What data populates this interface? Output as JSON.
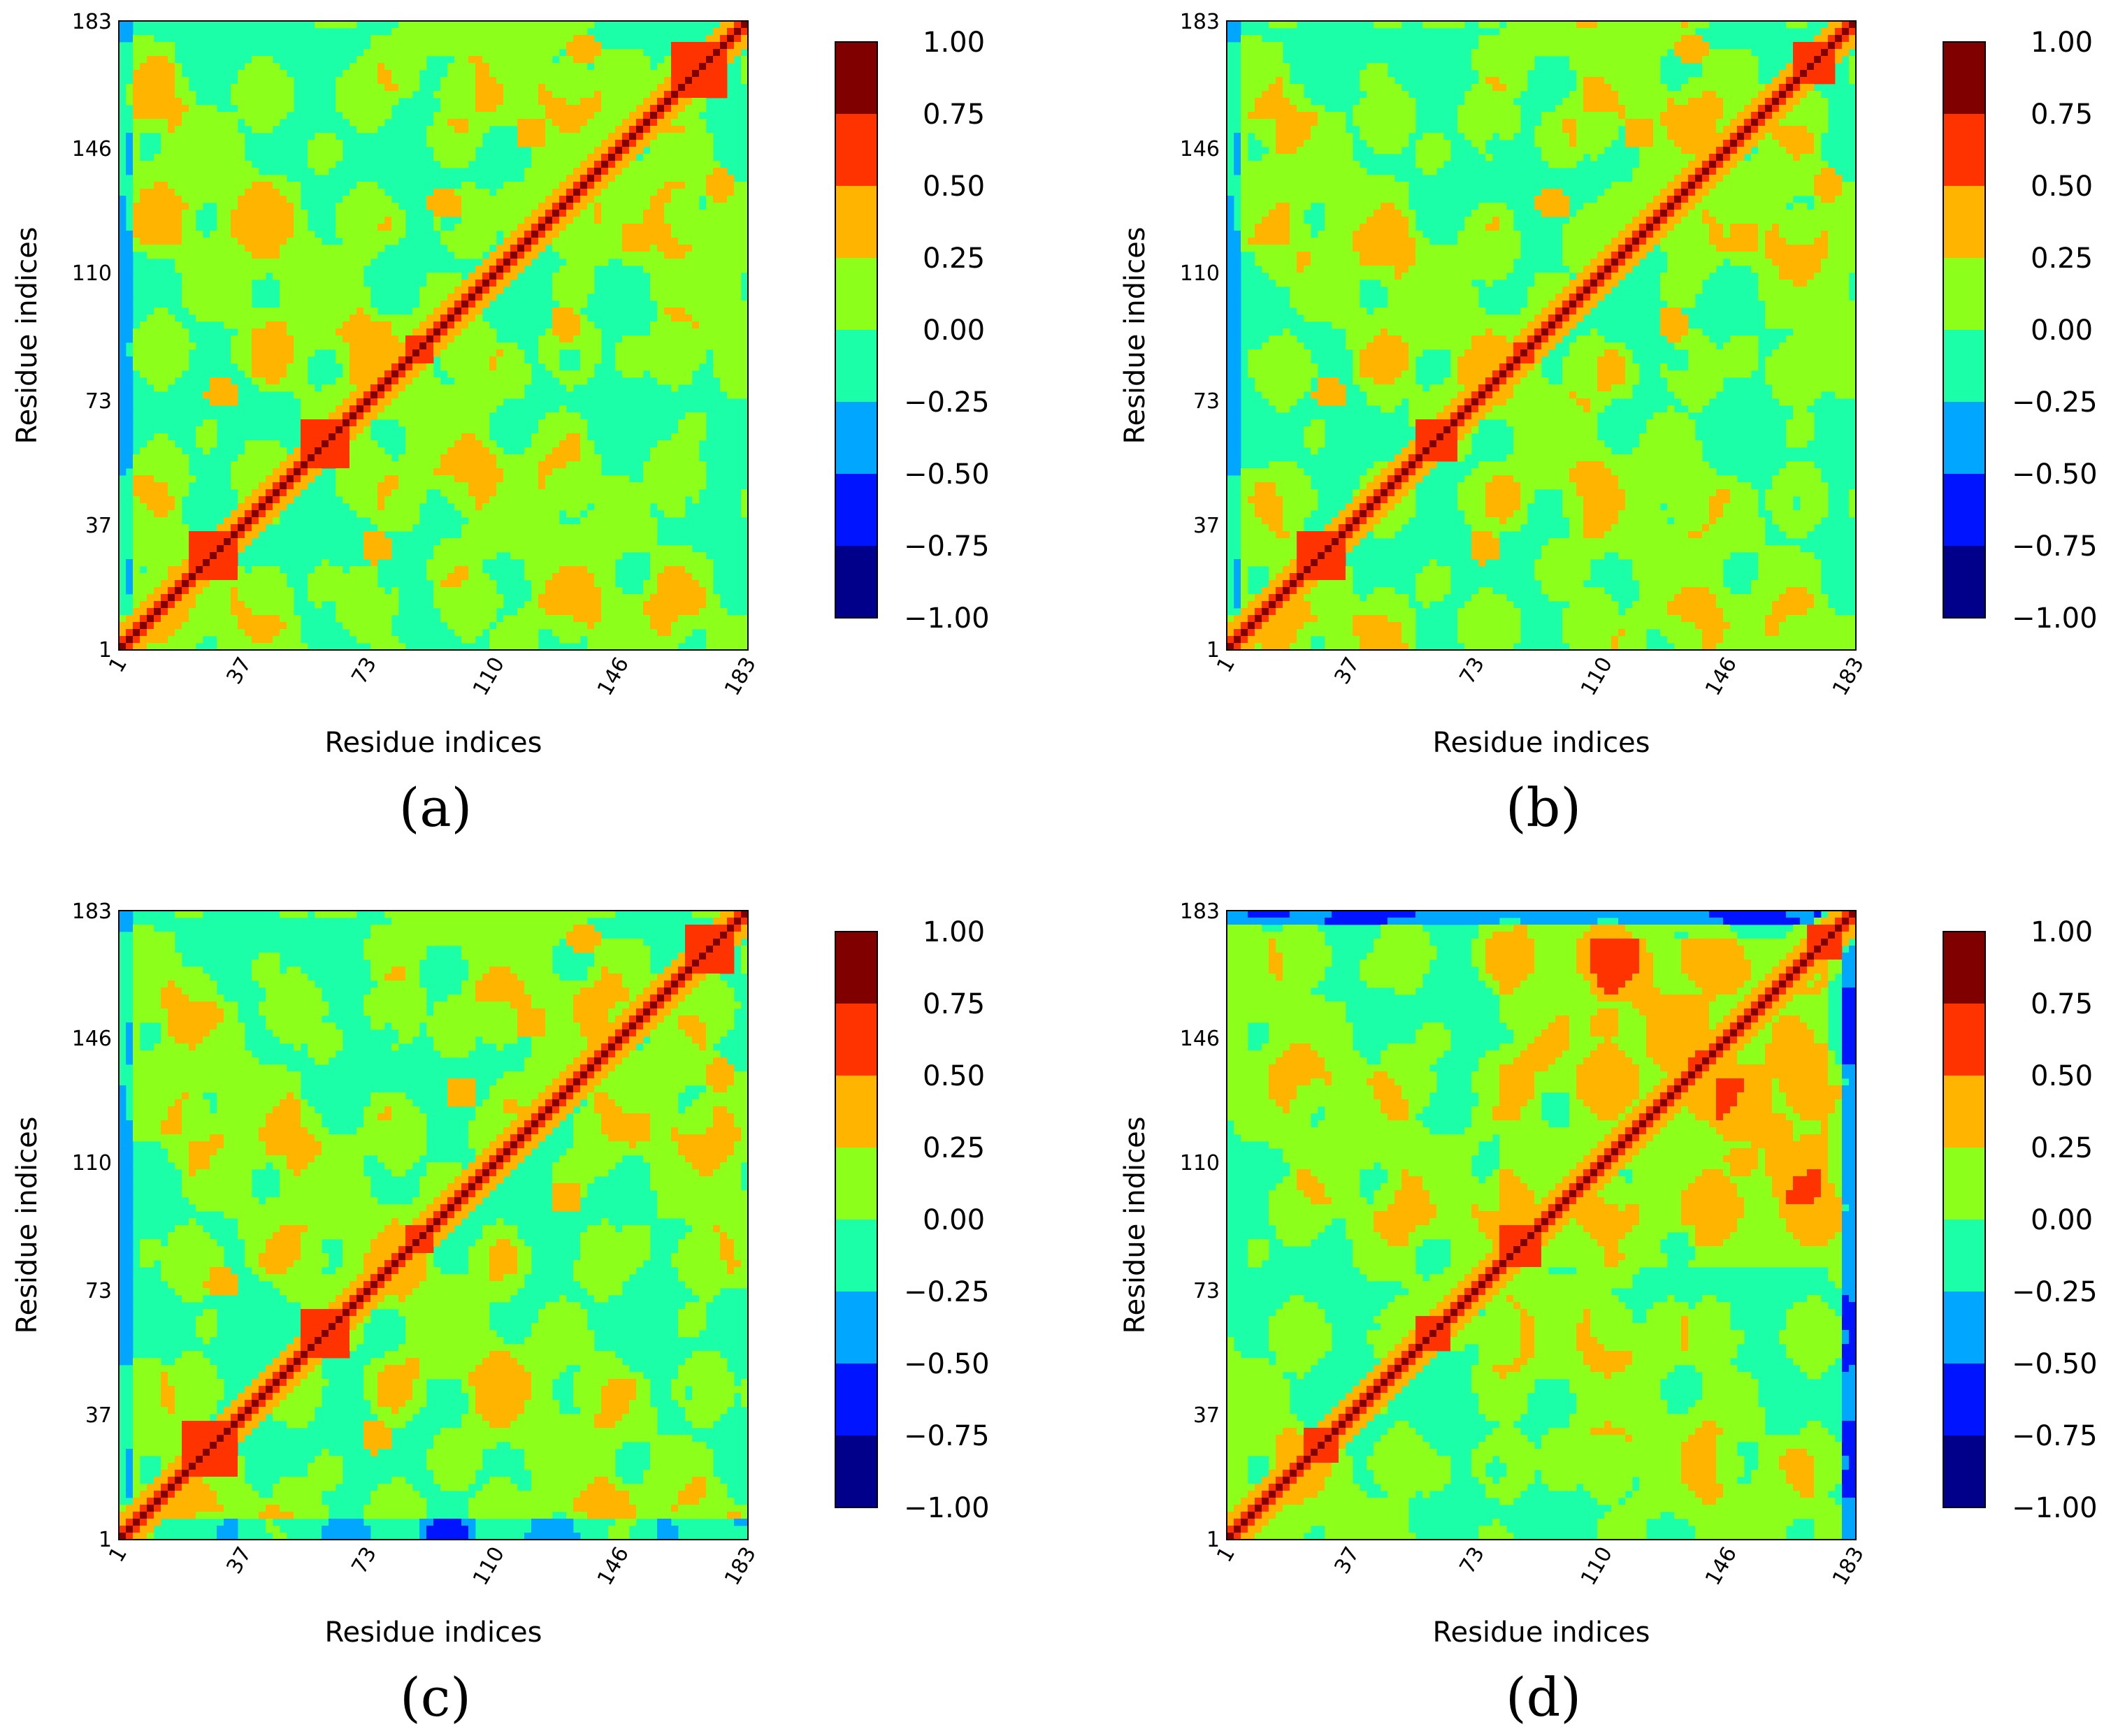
{
  "chart_data": [
    {
      "type": "heatmap",
      "panel_label": "(a)",
      "xlabel": "Residue indices",
      "ylabel": "Residue indices",
      "range": [
        1,
        183
      ],
      "ticks": [
        1,
        37,
        73,
        110,
        146,
        183
      ],
      "diagonal_blocks": [
        [
          20,
          34
        ],
        [
          52,
          68
        ],
        [
          84,
          92
        ],
        [
          160,
          176
        ]
      ],
      "off_diagonal_features": [
        [
          30,
          75
        ],
        [
          120,
          150
        ],
        [
          135,
          175
        ],
        [
          95,
          130
        ]
      ],
      "blue_edges": "left-bottom weak"
    },
    {
      "type": "heatmap",
      "panel_label": "(b)",
      "xlabel": "Residue indices",
      "ylabel": "Residue indices",
      "range": [
        1,
        183
      ],
      "ticks": [
        1,
        37,
        73,
        110,
        146,
        183
      ],
      "diagonal_blocks": [
        [
          20,
          34
        ],
        [
          55,
          68
        ],
        [
          84,
          90
        ],
        [
          165,
          176
        ]
      ],
      "off_diagonal_features": [
        [
          30,
          75
        ],
        [
          120,
          150
        ],
        [
          135,
          175
        ],
        [
          95,
          130
        ]
      ],
      "blue_edges": "left-bottom weak"
    },
    {
      "type": "heatmap",
      "panel_label": "(c)",
      "xlabel": "Residue indices",
      "ylabel": "Residue indices",
      "range": [
        1,
        183
      ],
      "ticks": [
        1,
        37,
        73,
        110,
        146,
        183
      ],
      "diagonal_blocks": [
        [
          18,
          34
        ],
        [
          52,
          68
        ],
        [
          84,
          92
        ],
        [
          165,
          178
        ]
      ],
      "off_diagonal_features": [
        [
          30,
          75
        ],
        [
          120,
          150
        ],
        [
          135,
          175
        ],
        [
          100,
          130
        ]
      ],
      "blue_edges": "bottom"
    },
    {
      "type": "heatmap",
      "panel_label": "(d)",
      "xlabel": "Residue indices",
      "ylabel": "Residue indices",
      "range": [
        1,
        183
      ],
      "ticks": [
        1,
        37,
        73,
        110,
        146,
        183
      ],
      "diagonal_blocks": [
        [
          22,
          32
        ],
        [
          55,
          65
        ],
        [
          80,
          92
        ],
        [
          168,
          178
        ]
      ],
      "off_diagonal_features": [
        [
          90,
          140
        ],
        [
          110,
          150
        ],
        [
          120,
          160
        ],
        [
          95,
          145
        ]
      ],
      "blue_edges": "top-right strong"
    }
  ],
  "colorbar": {
    "ticks": [
      "1.00",
      "0.75",
      "0.50",
      "0.25",
      "0.00",
      "−0.25",
      "−0.50",
      "−0.75",
      "−1.00"
    ],
    "colors": [
      "#800000",
      "#ff3300",
      "#ffb400",
      "#8cff1a",
      "#1affa8",
      "#00a6ff",
      "#0014ff",
      "#00008b"
    ]
  }
}
